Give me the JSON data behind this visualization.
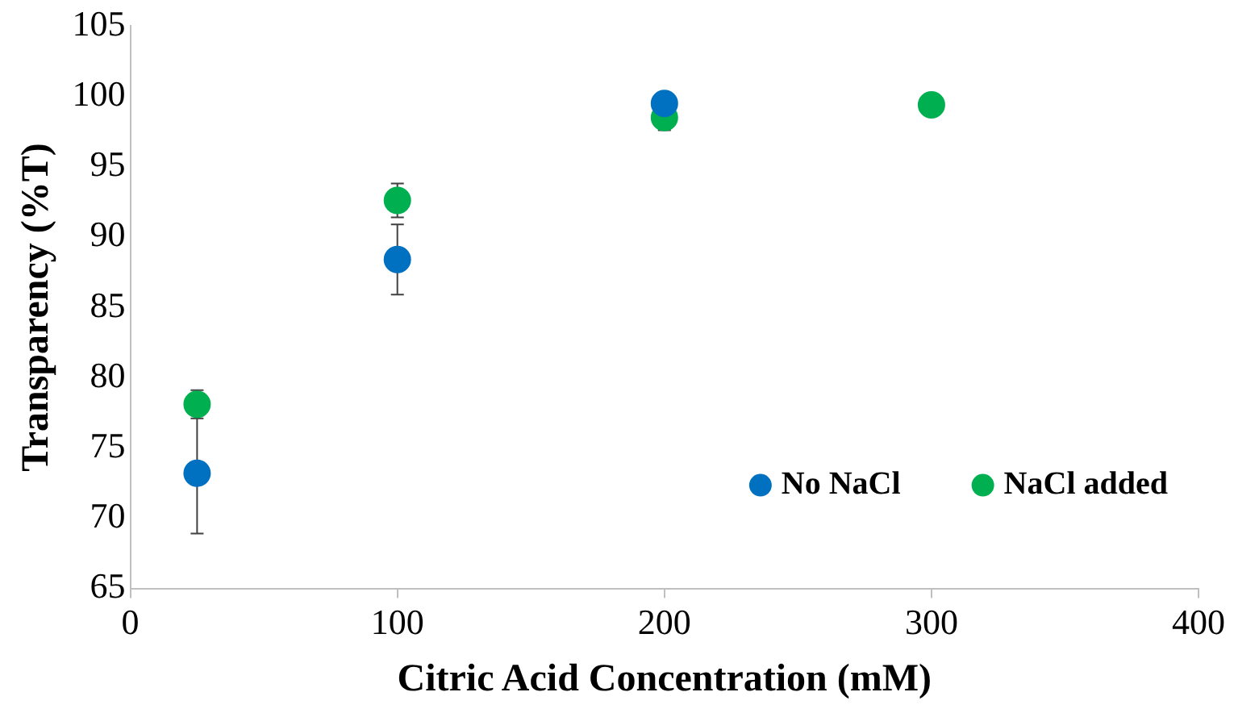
{
  "chart_data": {
    "type": "scatter",
    "xlabel": "Citric Acid Concentration (mM)",
    "ylabel": "Transparency (%T)",
    "xlim": [
      0,
      400
    ],
    "xticks": [
      0,
      100,
      200,
      300,
      400
    ],
    "ylim": [
      65,
      105
    ],
    "yticks": [
      65,
      70,
      75,
      80,
      85,
      90,
      95,
      100,
      105
    ],
    "grid": false,
    "legend": "bottom right",
    "marker": "circle",
    "series": [
      {
        "name": "No NaCl",
        "color": "#0070c0",
        "x": [
          25,
          100,
          200
        ],
        "values": [
          73.2,
          88.4,
          99.5
        ],
        "errors": [
          4.3,
          2.5,
          null
        ]
      },
      {
        "name": "NaCl added",
        "color": "#00b050",
        "x": [
          25,
          100,
          200,
          300
        ],
        "values": [
          78.1,
          92.6,
          98.5,
          99.4
        ],
        "errors": [
          1.0,
          1.2,
          0.9,
          null
        ]
      }
    ]
  }
}
